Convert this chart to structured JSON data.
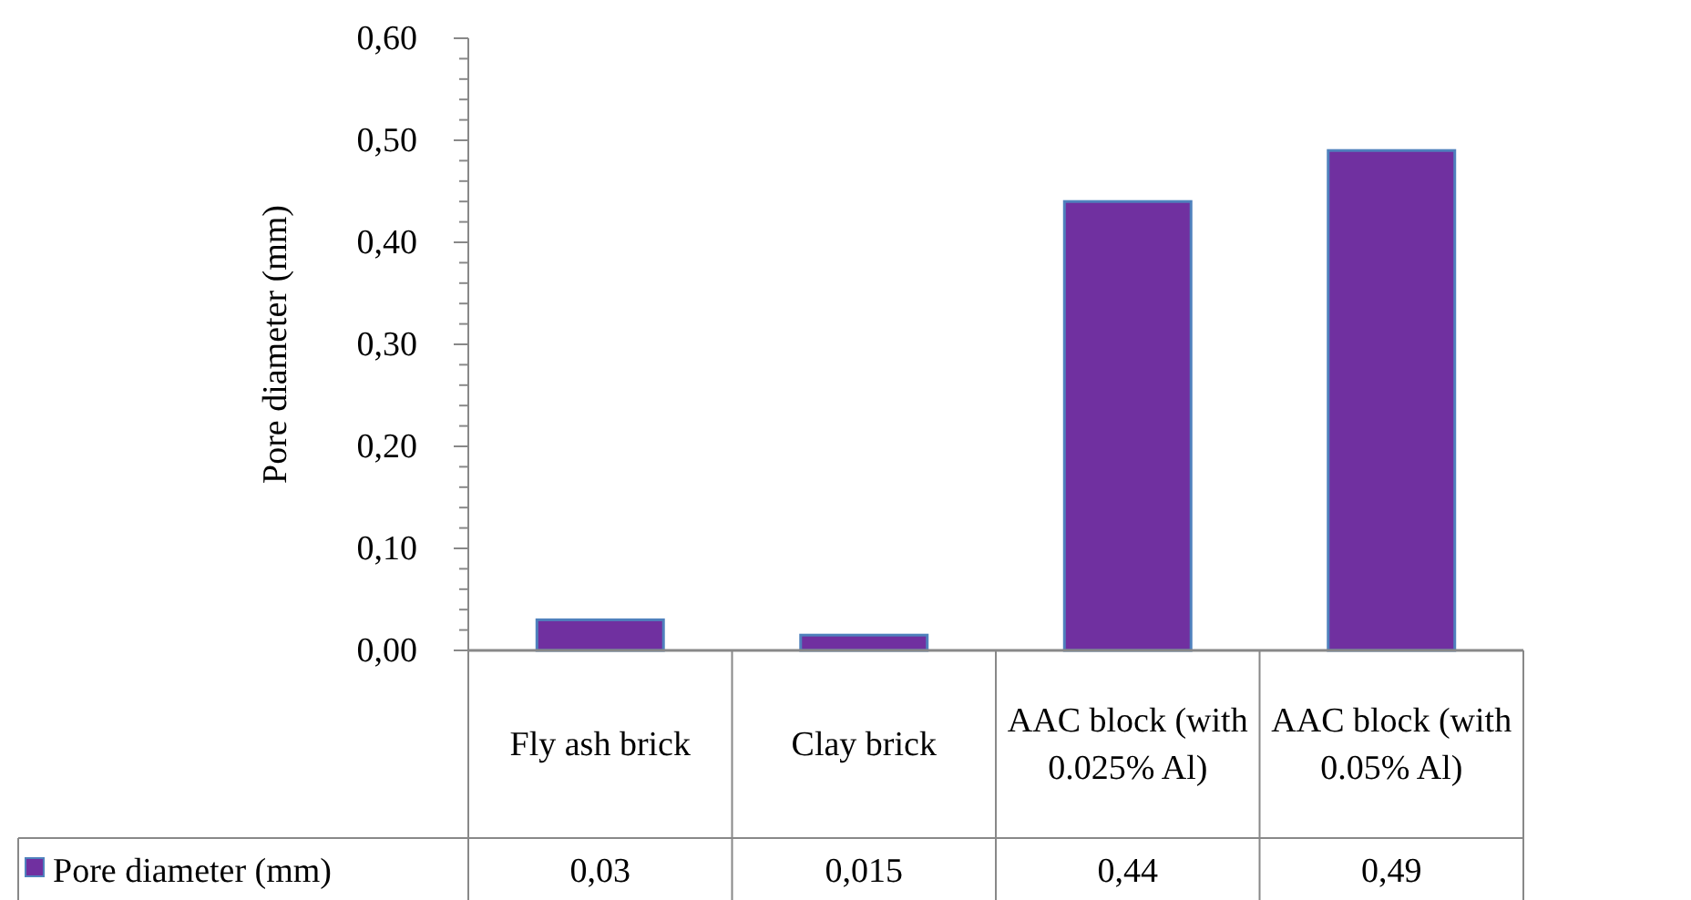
{
  "chart_data": {
    "type": "bar",
    "ylabel": "Pore diameter (mm)",
    "categories": [
      "Fly ash brick",
      "Clay brick",
      "AAC block (with 0.025% Al)",
      "AAC block (with 0.05% Al)"
    ],
    "series": [
      {
        "name": "Pore diameter (mm)",
        "color": "#7030a0",
        "values": [
          0.03,
          0.015,
          0.44,
          0.49
        ]
      }
    ],
    "value_labels": [
      "0,03",
      "0,015",
      "0,44",
      "0,49"
    ],
    "ylim": [
      0,
      0.6
    ],
    "yticks": [
      {
        "value": 0,
        "label": "0,00"
      },
      {
        "value": 0.02,
        "label": null
      },
      {
        "value": 0.04,
        "label": null
      },
      {
        "value": 0.06,
        "label": null
      },
      {
        "value": 0.08,
        "label": null
      },
      {
        "value": 0.1,
        "label": "0,10"
      },
      {
        "value": 0.12,
        "label": null
      },
      {
        "value": 0.14,
        "label": null
      },
      {
        "value": 0.16,
        "label": null
      },
      {
        "value": 0.18,
        "label": null
      },
      {
        "value": 0.2,
        "label": "0,20"
      },
      {
        "value": 0.22,
        "label": null
      },
      {
        "value": 0.24,
        "label": null
      },
      {
        "value": 0.26,
        "label": null
      },
      {
        "value": 0.28,
        "label": null
      },
      {
        "value": 0.3,
        "label": "0,30"
      },
      {
        "value": 0.32,
        "label": null
      },
      {
        "value": 0.34,
        "label": null
      },
      {
        "value": 0.36,
        "label": null
      },
      {
        "value": 0.38,
        "label": null
      },
      {
        "value": 0.4,
        "label": "0,40"
      },
      {
        "value": 0.42,
        "label": null
      },
      {
        "value": 0.44,
        "label": null
      },
      {
        "value": 0.46,
        "label": null
      },
      {
        "value": 0.48,
        "label": null
      },
      {
        "value": 0.5,
        "label": "0,50"
      },
      {
        "value": 0.52,
        "label": null
      },
      {
        "value": 0.54,
        "label": null
      },
      {
        "value": 0.56,
        "label": null
      },
      {
        "value": 0.58,
        "label": null
      },
      {
        "value": 0.6,
        "label": "0,60"
      }
    ],
    "grid": false,
    "legend": "bottom"
  }
}
